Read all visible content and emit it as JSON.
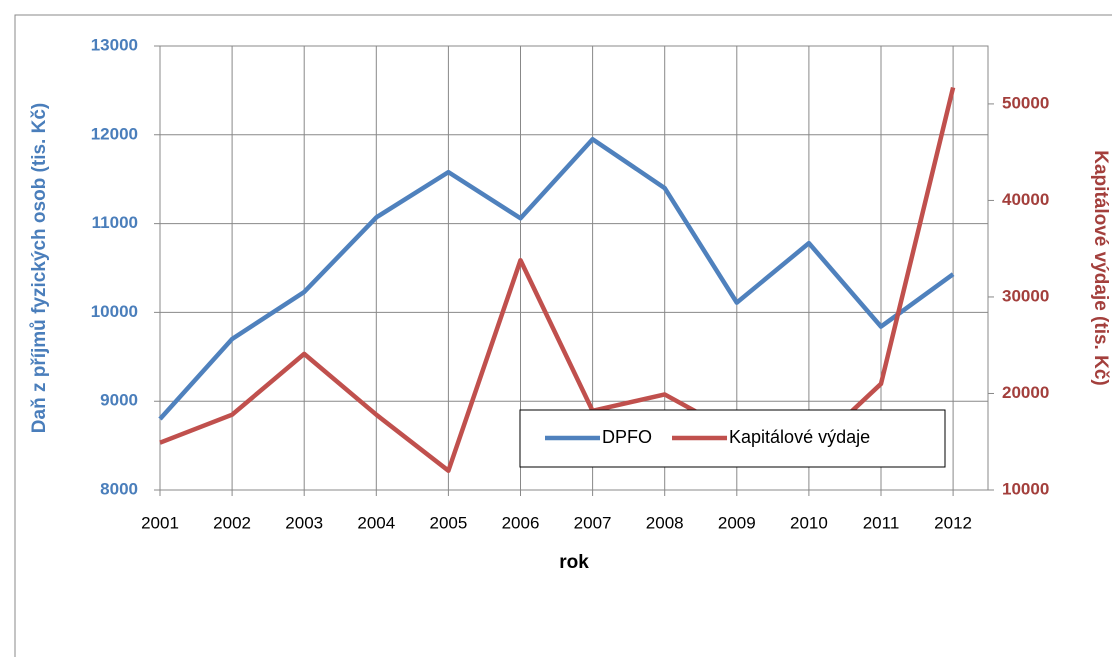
{
  "chart_data": {
    "type": "line",
    "x_label": "rok",
    "y_label": "Daň z příjmů fyzických osob (tis. Kč)",
    "y2_label": "Kapitálové výdaje (tis. Kč)",
    "categories": [
      "2001",
      "2002",
      "2003",
      "2004",
      "2005",
      "2006",
      "2007",
      "2008",
      "2009",
      "2010",
      "2011",
      "2012"
    ],
    "series": [
      {
        "name": "DPFO",
        "color": "#4f81bd",
        "values": [
          8800,
          9700,
          10230,
          11070,
          11580,
          11060,
          11950,
          11400,
          10110,
          10780,
          9840,
          10430
        ]
      },
      {
        "name": "Kapitálové výdaje",
        "color": "#c0504d",
        "axis": "y2",
        "values": [
          14900,
          17800,
          24100,
          17800,
          12000,
          33800,
          18200,
          19900,
          15800,
          14000,
          21000,
          51700
        ]
      }
    ],
    "ylim": [
      8000,
      13000
    ],
    "yticks": [
      8000,
      9000,
      10000,
      11000,
      12000,
      13000
    ],
    "y2lim": [
      10000,
      56000
    ],
    "y2ticks": [
      10000,
      20000,
      30000,
      40000,
      50000
    ],
    "grid": true,
    "legend": "lower right"
  }
}
